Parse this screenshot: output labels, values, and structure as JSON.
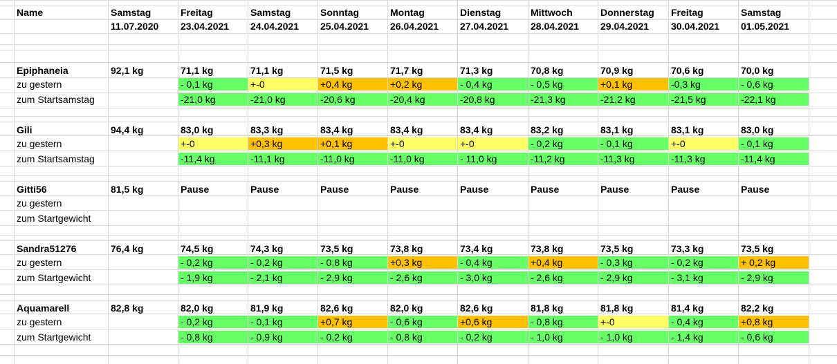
{
  "colors": {
    "green": "#66ff66",
    "yellow": "#ffff66",
    "orange": "#ffc000",
    "grid": "#d8d8d8"
  },
  "header": {
    "name_label": "Name",
    "days": [
      "Samstag",
      "Freitag",
      "Samstag",
      "Sonntag",
      "Montag",
      "Dienstag",
      "Mittwoch",
      "Donnerstag",
      "Freitag",
      "Samstag"
    ],
    "dates": [
      "11.07.2020",
      "23.04.2021",
      "24.04.2021",
      "25.04.2021",
      "26.04.2021",
      "27.04.2021",
      "28.04.2021",
      "29.04.2021",
      "30.04.2021",
      "01.05.2021"
    ]
  },
  "people": [
    {
      "name": "Epiphaneia",
      "start": "92,1 kg",
      "weights": [
        "71,1 kg",
        "71,1 kg",
        "71,5 kg",
        "71,7 kg",
        "71,3 kg",
        "70,8 kg",
        "70,9 kg",
        "70,6 kg",
        "70,0 kg"
      ],
      "diff_label": "zu gestern",
      "diff": [
        {
          "v": "- 0,1 kg",
          "c": "green"
        },
        {
          "v": "+-0",
          "c": "yellow"
        },
        {
          "v": "+0,4 kg",
          "c": "orange"
        },
        {
          "v": "+0,2 kg",
          "c": "orange"
        },
        {
          "v": "- 0,4 kg",
          "c": "green"
        },
        {
          "v": "- 0,5 kg",
          "c": "green"
        },
        {
          "v": "+0,1 kg",
          "c": "orange"
        },
        {
          "v": "-0,3 kg",
          "c": "green"
        },
        {
          "v": "- 0,6 kg",
          "c": "green"
        }
      ],
      "total_label": "zum Startsamstag",
      "total": [
        "-21,0 kg",
        "-21,0 kg",
        "-20,6 kg",
        "-20,4 kg",
        "-20,8 kg",
        "-21,3 kg",
        "-21,2 kg",
        "-21,5 kg",
        "-22,1 kg"
      ],
      "total_color": "green"
    },
    {
      "name": "Gili",
      "start": "94,4 kg",
      "weights": [
        "83,0 kg",
        "83,3 kg",
        "83,4 kg",
        "83,4 kg",
        "83,4 kg",
        "83,2 kg",
        "83,1 kg",
        "83,1 kg",
        "83,0 kg"
      ],
      "diff_label": "zu gestern",
      "diff": [
        {
          "v": "+-0",
          "c": "yellow"
        },
        {
          "v": "+0,3 kg",
          "c": "orange"
        },
        {
          "v": "+0,1 kg",
          "c": "orange"
        },
        {
          "v": "+-0",
          "c": "yellow"
        },
        {
          "v": "+-0",
          "c": "yellow"
        },
        {
          "v": "- 0,2 kg",
          "c": "green"
        },
        {
          "v": "- 0,1 kg",
          "c": "green"
        },
        {
          "v": "+-0",
          "c": "yellow"
        },
        {
          "v": "- 0,1 kg",
          "c": "green"
        }
      ],
      "total_label": "zum Startsamstag",
      "total": [
        "-11,4 kg",
        "-11,1 kg",
        "-11,0 kg",
        "-11,0 kg",
        "- 11,0 kg",
        "-11,2 kg",
        "-11,3 kg",
        "-11,3 kg",
        "-11,4 kg"
      ],
      "total_color": "green"
    },
    {
      "name": "Gitti56",
      "start": "81,5 kg",
      "weights": [
        "Pause",
        "Pause",
        "Pause",
        "Pause",
        "Pause",
        "Pause",
        "Pause",
        "Pause",
        "Pause"
      ],
      "diff_label": "zu gestern",
      "diff": [],
      "total_label": "zum Startgewicht",
      "total": [],
      "total_color": "green"
    },
    {
      "name": "Sandra51276",
      "start": "76,4 kg",
      "weights": [
        "74,5 kg",
        "74,3 kg",
        "73,5 kg",
        "73,8 kg",
        "73,4 kg",
        "73,8 kg",
        "73,5 kg",
        "73,3 kg",
        "73,5 kg"
      ],
      "diff_label": "zu gestern",
      "diff": [
        {
          "v": "- 0,2 kg",
          "c": "green"
        },
        {
          "v": "- 0,2 kg",
          "c": "green"
        },
        {
          "v": "- 0,8 kg",
          "c": "green"
        },
        {
          "v": "+0,3 kg",
          "c": "orange"
        },
        {
          "v": "- 0,4 kg",
          "c": "green"
        },
        {
          "v": "+0,4 kg",
          "c": "orange"
        },
        {
          "v": "- 0,3 kg",
          "c": "green"
        },
        {
          "v": "- 0,2 kg",
          "c": "green"
        },
        {
          "v": "+ 0,2 kg",
          "c": "orange"
        }
      ],
      "total_label": "zum Startgewicht",
      "total": [
        "- 1,9 kg",
        "- 2,1 kg",
        "- 2,9 kg",
        "- 2,6 kg",
        "- 3,0 kg",
        "- 2,6 kg",
        "- 2,9 kg",
        "- 3,1 kg",
        "- 2,9 kg"
      ],
      "total_color": "green"
    },
    {
      "name": "Aquamarell",
      "start": "82,8 kg",
      "weights": [
        "82,0 kg",
        "81,9 kg",
        "82,6 kg",
        "82,0 kg",
        "82,6 kg",
        "81,8 kg",
        "81,8 kg",
        "81,4 kg",
        "82,2 kg"
      ],
      "diff_label": "zu gestern",
      "diff": [
        {
          "v": "- 0,2 kg",
          "c": "green"
        },
        {
          "v": "- 0,1 kg",
          "c": "green"
        },
        {
          "v": "+0,7 kg",
          "c": "orange"
        },
        {
          "v": "- 0,6 kg",
          "c": "green"
        },
        {
          "v": "+0,6 kg",
          "c": "orange"
        },
        {
          "v": "- 0,8 kg",
          "c": "green"
        },
        {
          "v": "+-0",
          "c": "yellow"
        },
        {
          "v": "- 0,4 kg",
          "c": "green"
        },
        {
          "v": "+0,8 kg",
          "c": "orange"
        }
      ],
      "total_label": "zum Startgewicht",
      "total": [
        "- 0,8 kg",
        "- 0,9 kg",
        "- 0,2 kg",
        "- 0,8 kg",
        "- 0,2 kg",
        "- 1,0 kg",
        "- 1,0 kg",
        "- 1,4 kg",
        "- 0,6 kg"
      ],
      "total_color": "green"
    }
  ]
}
